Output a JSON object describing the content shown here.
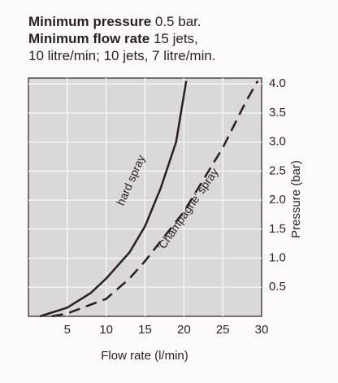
{
  "header": {
    "lines": [
      {
        "bold": "Minimum pressure",
        "text": "0.5 bar."
      },
      {
        "bold": "Minimum flow rate",
        "text": "15 jets,"
      },
      {
        "bold": null,
        "text": "10 litre/min; 10 jets, 7 litre/min."
      }
    ]
  },
  "chart_data": {
    "type": "line",
    "xlabel": "Flow rate (l/min)",
    "ylabel": "Pressure (bar)",
    "xlim": [
      0,
      30
    ],
    "ylim": [
      0,
      4.1
    ],
    "xticks": [
      5,
      10,
      15,
      20,
      25,
      30
    ],
    "yticks": [
      0.5,
      {
        "value": 1,
        "label": "1.0"
      },
      1.5,
      {
        "value": 2,
        "label": "2.0"
      },
      2.5,
      {
        "value": 3,
        "label": "3.0"
      },
      3.5,
      {
        "value": 4,
        "label": "4.0"
      }
    ],
    "grid": true,
    "series": [
      {
        "name": "hard spray",
        "color": "#2a1f1c",
        "dashed": false,
        "x": [
          1.5,
          5,
          8,
          10,
          13,
          15,
          17,
          19,
          20.3
        ],
        "values": [
          0,
          0.15,
          0.4,
          0.65,
          1.1,
          1.55,
          2.2,
          3.0,
          4.05
        ]
      },
      {
        "name": "'Champagne' spray",
        "color": "#2a1f1c",
        "dashed": true,
        "x": [
          3,
          5,
          8,
          10,
          13,
          15,
          20,
          25,
          28,
          29.5
        ],
        "values": [
          0,
          0.05,
          0.2,
          0.3,
          0.65,
          0.95,
          1.8,
          2.9,
          3.7,
          4.05
        ]
      }
    ]
  }
}
